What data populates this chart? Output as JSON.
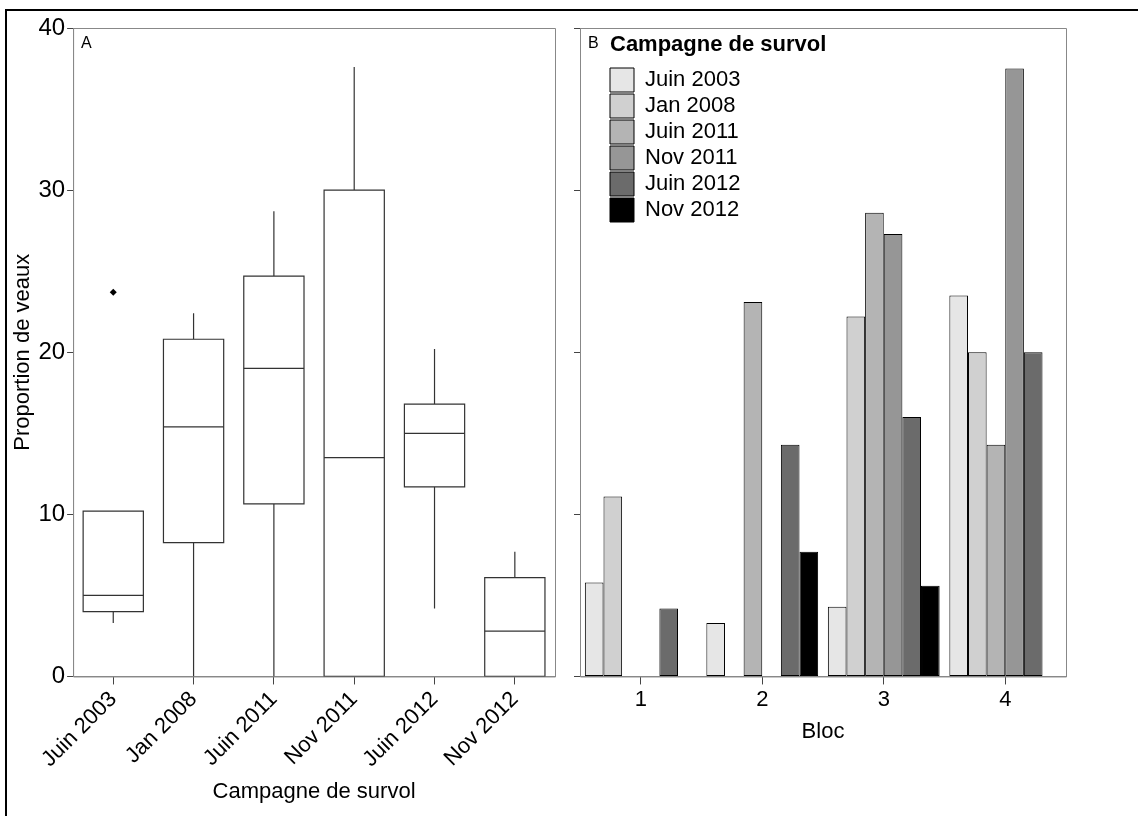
{
  "chart_data": [
    {
      "type": "box",
      "annotations": [
        "A"
      ],
      "xlabel": "Campagne de survol",
      "ylabel": "Proportion de veaux",
      "categories": [
        "Juin 2003",
        "Jan 2008",
        "Juin 2011",
        "Nov 2011",
        "Juin 2012",
        "Nov 2012"
      ],
      "boxes": [
        {
          "low": 3.3,
          "q1": 4.0,
          "median": 5.0,
          "q3": 10.2,
          "high": 10.2,
          "outliers": [
            23.7
          ]
        },
        {
          "low": 0,
          "q1": 8.25,
          "median": 15.4,
          "q3": 20.8,
          "high": 22.4
        },
        {
          "low": 0,
          "q1": 10.65,
          "median": 19.0,
          "q3": 24.7,
          "high": 28.7
        },
        {
          "low": 0,
          "q1": 0,
          "median": 13.5,
          "q3": 30.0,
          "high": 37.6
        },
        {
          "low": 4.2,
          "q1": 11.7,
          "median": 15.0,
          "q3": 16.8,
          "high": 20.2
        },
        {
          "low": 0,
          "q1": 0,
          "median": 2.8,
          "q3": 6.1,
          "high": 7.7
        }
      ],
      "ylim": [
        0,
        40
      ],
      "yticks": [
        0,
        10,
        20,
        30,
        40
      ],
      "grid": false,
      "legend": false
    },
    {
      "type": "bar",
      "annotations": [
        "B"
      ],
      "xlabel": "Bloc",
      "legend_title": "Campagne de survol",
      "categories": [
        "1",
        "2",
        "3",
        "4"
      ],
      "series": [
        {
          "name": "Juin 2003",
          "color": "#e6e6e6",
          "values": [
            5.8,
            3.3,
            4.3,
            23.5
          ]
        },
        {
          "name": "Jan 2008",
          "color": "#d0d0d0",
          "values": [
            11.1,
            0,
            22.2,
            20.0
          ]
        },
        {
          "name": "Juin 2011",
          "color": "#b4b4b4",
          "values": [
            0,
            23.1,
            28.6,
            14.3
          ]
        },
        {
          "name": "Nov 2011",
          "color": "#969696",
          "values": [
            0,
            0,
            27.3,
            37.5
          ]
        },
        {
          "name": "Juin 2012",
          "color": "#6b6b6b",
          "values": [
            4.2,
            14.3,
            16.0,
            20.0
          ]
        },
        {
          "name": "Nov 2012",
          "color": "#000000",
          "values": [
            0,
            7.7,
            5.6,
            0
          ]
        }
      ],
      "ylim": [
        0,
        40
      ],
      "yticks": [
        0,
        10,
        20,
        30,
        40
      ],
      "tick_labels": "x",
      "grid": false,
      "legend": "top left"
    }
  ]
}
